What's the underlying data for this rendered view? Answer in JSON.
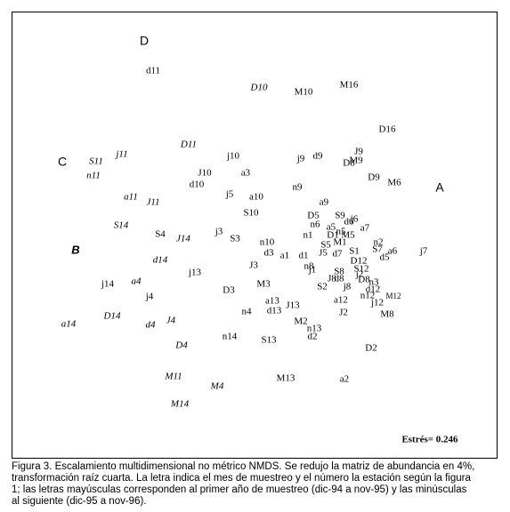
{
  "chart_data": {
    "type": "scatter",
    "xlim": [
      -2.72,
      2.73
    ],
    "ylim": [
      -2.5,
      2.52
    ],
    "stress_label": "Estrés= 0.246",
    "caption": [
      "Figura 3. Escalamiento multidimensional no métrico NMDS. Se redujo la matriz de abundancia en 4%,",
      "transformación raíz cuarta. La letra indica el mes de muestreo y el número la estación según la figura",
      "1; las letras mayúsculas corresponden al primer año de muestreo (dic-94 a nov-95) y las minúsculas",
      "al siguiente (dic-95 a nov-96)."
    ],
    "points": [
      {
        "label": "D",
        "x": -1.23,
        "y": 2.18,
        "style": "sans"
      },
      {
        "label": "d11",
        "x": -1.13,
        "y": 1.85
      },
      {
        "label": "D10",
        "x": 0.06,
        "y": 1.66,
        "style": "italic"
      },
      {
        "label": "M10",
        "x": 0.56,
        "y": 1.61
      },
      {
        "label": "M16",
        "x": 1.07,
        "y": 1.69
      },
      {
        "label": "D16",
        "x": 1.5,
        "y": 1.19
      },
      {
        "label": "D11",
        "x": -0.73,
        "y": 1.02,
        "style": "italic"
      },
      {
        "label": "j10",
        "x": -0.23,
        "y": 0.89
      },
      {
        "label": "j9",
        "x": 0.53,
        "y": 0.86
      },
      {
        "label": "d9",
        "x": 0.72,
        "y": 0.89
      },
      {
        "label": "J9",
        "x": 1.18,
        "y": 0.94
      },
      {
        "label": "D8",
        "x": 1.07,
        "y": 0.81
      },
      {
        "label": "M9",
        "x": 1.15,
        "y": 0.84
      },
      {
        "label": "C",
        "x": -2.15,
        "y": 0.82,
        "style": "sans"
      },
      {
        "label": "S11",
        "x": -1.77,
        "y": 0.83,
        "style": "italic"
      },
      {
        "label": "j11",
        "x": -1.48,
        "y": 0.91,
        "style": "italic"
      },
      {
        "label": "n11",
        "x": -1.8,
        "y": 0.67,
        "style": "italic"
      },
      {
        "label": "J10",
        "x": -0.55,
        "y": 0.7
      },
      {
        "label": "a3",
        "x": -0.09,
        "y": 0.7
      },
      {
        "label": "d10",
        "x": -0.64,
        "y": 0.57
      },
      {
        "label": "D9",
        "x": 1.35,
        "y": 0.65
      },
      {
        "label": "M6",
        "x": 1.58,
        "y": 0.59
      },
      {
        "label": "A",
        "x": 2.09,
        "y": 0.53,
        "style": "sans"
      },
      {
        "label": "n9",
        "x": 0.49,
        "y": 0.54
      },
      {
        "label": "j5",
        "x": -0.27,
        "y": 0.46
      },
      {
        "label": "a10",
        "x": 0.03,
        "y": 0.43
      },
      {
        "label": "a11",
        "x": -1.38,
        "y": 0.43,
        "style": "italic"
      },
      {
        "label": "J11",
        "x": -1.13,
        "y": 0.37,
        "style": "italic"
      },
      {
        "label": "a9",
        "x": 0.79,
        "y": 0.37
      },
      {
        "label": "S10",
        "x": -0.03,
        "y": 0.25
      },
      {
        "label": "D5",
        "x": 0.67,
        "y": 0.22
      },
      {
        "label": "S9",
        "x": 0.97,
        "y": 0.22
      },
      {
        "label": "d6",
        "x": 1.07,
        "y": 0.15
      },
      {
        "label": "j6",
        "x": 1.13,
        "y": 0.18
      },
      {
        "label": "n6",
        "x": 0.69,
        "y": 0.12
      },
      {
        "label": "a5",
        "x": 0.87,
        "y": 0.09
      },
      {
        "label": "a7",
        "x": 1.25,
        "y": 0.08
      },
      {
        "label": "S14",
        "x": -1.49,
        "y": 0.11,
        "style": "italic"
      },
      {
        "label": "B",
        "x": -2.0,
        "y": -0.17,
        "style": "bold-italic"
      },
      {
        "label": "S4",
        "x": -1.05,
        "y": 0.01
      },
      {
        "label": "J14",
        "x": -0.79,
        "y": -0.04,
        "style": "italic"
      },
      {
        "label": "j3",
        "x": -0.39,
        "y": 0.04
      },
      {
        "label": "S3",
        "x": -0.21,
        "y": -0.04
      },
      {
        "label": "n1",
        "x": 0.61,
        "y": 0.0
      },
      {
        "label": "D1",
        "x": 0.89,
        "y": 0.0
      },
      {
        "label": "n5",
        "x": 0.98,
        "y": 0.04
      },
      {
        "label": "M5",
        "x": 1.06,
        "y": 0.0
      },
      {
        "label": "M1",
        "x": 0.97,
        "y": -0.08
      },
      {
        "label": "n10",
        "x": 0.15,
        "y": -0.08
      },
      {
        "label": "S5",
        "x": 0.81,
        "y": -0.11
      },
      {
        "label": "n2",
        "x": 1.4,
        "y": -0.08
      },
      {
        "label": "S7",
        "x": 1.39,
        "y": -0.16
      },
      {
        "label": "a6",
        "x": 1.56,
        "y": -0.18
      },
      {
        "label": "j7",
        "x": 1.91,
        "y": -0.18
      },
      {
        "label": "S1",
        "x": 1.13,
        "y": -0.18
      },
      {
        "label": "J5",
        "x": 0.78,
        "y": -0.2
      },
      {
        "label": "d7",
        "x": 0.94,
        "y": -0.21
      },
      {
        "label": "d3",
        "x": 0.17,
        "y": -0.2
      },
      {
        "label": "a1",
        "x": 0.35,
        "y": -0.23
      },
      {
        "label": "d1",
        "x": 0.56,
        "y": -0.23
      },
      {
        "label": "d5",
        "x": 1.47,
        "y": -0.25
      },
      {
        "label": "d14",
        "x": -1.05,
        "y": -0.28,
        "style": "italic"
      },
      {
        "label": "D12",
        "x": 1.18,
        "y": -0.29
      },
      {
        "label": "J3",
        "x": 0.0,
        "y": -0.34
      },
      {
        "label": "n8",
        "x": 0.62,
        "y": -0.35
      },
      {
        "label": "j1",
        "x": 0.66,
        "y": -0.39
      },
      {
        "label": "S8",
        "x": 0.96,
        "y": -0.41
      },
      {
        "label": "S12",
        "x": 1.21,
        "y": -0.38
      },
      {
        "label": "j13",
        "x": -0.66,
        "y": -0.42
      },
      {
        "label": "j2",
        "x": 1.19,
        "y": -0.44
      },
      {
        "label": "J8",
        "x": 0.88,
        "y": -0.49
      },
      {
        "label": "d8",
        "x": 0.96,
        "y": -0.49
      },
      {
        "label": "D8",
        "x": 1.24,
        "y": -0.5
      },
      {
        "label": "a4",
        "x": -1.32,
        "y": -0.52,
        "style": "italic"
      },
      {
        "label": "j14",
        "x": -1.64,
        "y": -0.55
      },
      {
        "label": "M3",
        "x": 0.11,
        "y": -0.55
      },
      {
        "label": "n3",
        "x": 1.35,
        "y": -0.53
      },
      {
        "label": "S2",
        "x": 0.77,
        "y": -0.58
      },
      {
        "label": "j8",
        "x": 1.05,
        "y": -0.58
      },
      {
        "label": "d12",
        "x": 1.34,
        "y": -0.61
      },
      {
        "label": "D3",
        "x": -0.28,
        "y": -0.62
      },
      {
        "label": "j4",
        "x": -1.17,
        "y": -0.69
      },
      {
        "label": "M12",
        "x": 1.57,
        "y": -0.69,
        "style": "small"
      },
      {
        "label": "n12",
        "x": 1.28,
        "y": -0.68
      },
      {
        "label": "a12",
        "x": 0.98,
        "y": -0.73
      },
      {
        "label": "j12",
        "x": 1.39,
        "y": -0.76
      },
      {
        "label": "a13",
        "x": 0.21,
        "y": -0.74
      },
      {
        "label": "J13",
        "x": 0.44,
        "y": -0.79
      },
      {
        "label": "d13",
        "x": 0.23,
        "y": -0.85
      },
      {
        "label": "n4",
        "x": -0.08,
        "y": -0.86
      },
      {
        "label": "J2",
        "x": 1.01,
        "y": -0.87
      },
      {
        "label": "M8",
        "x": 1.5,
        "y": -0.89
      },
      {
        "label": "D14",
        "x": -1.59,
        "y": -0.91,
        "style": "italic"
      },
      {
        "label": "a14",
        "x": -2.08,
        "y": -1.0,
        "style": "italic"
      },
      {
        "label": "J4",
        "x": -0.93,
        "y": -0.96,
        "style": "italic"
      },
      {
        "label": "d4",
        "x": -1.16,
        "y": -1.01,
        "style": "italic"
      },
      {
        "label": "M2",
        "x": 0.53,
        "y": -0.97
      },
      {
        "label": "n13",
        "x": 0.68,
        "y": -1.05
      },
      {
        "label": "d2",
        "x": 0.66,
        "y": -1.14
      },
      {
        "label": "n14",
        "x": -0.27,
        "y": -1.14
      },
      {
        "label": "S13",
        "x": 0.17,
        "y": -1.18
      },
      {
        "label": "D4",
        "x": -0.81,
        "y": -1.24,
        "style": "italic"
      },
      {
        "label": "D2",
        "x": 1.32,
        "y": -1.27
      },
      {
        "label": "M11",
        "x": -0.9,
        "y": -1.59,
        "style": "italic"
      },
      {
        "label": "M13",
        "x": 0.36,
        "y": -1.61
      },
      {
        "label": "a2",
        "x": 1.02,
        "y": -1.62
      },
      {
        "label": "M4",
        "x": -0.41,
        "y": -1.7,
        "style": "italic"
      },
      {
        "label": "M14",
        "x": -0.83,
        "y": -1.9,
        "style": "italic"
      }
    ]
  }
}
